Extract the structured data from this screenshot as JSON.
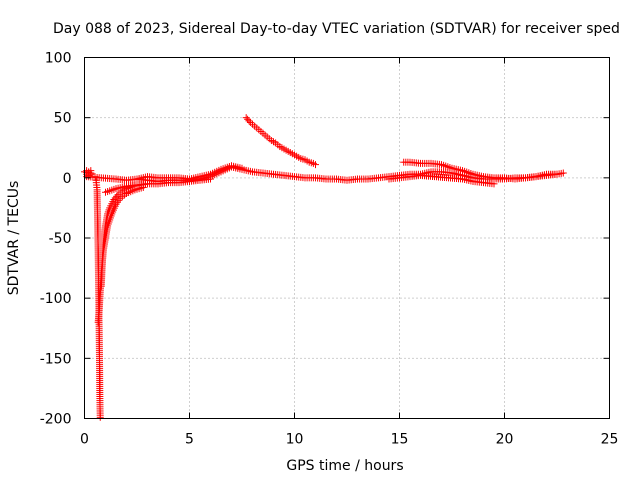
{
  "chart_data": {
    "type": "scatter",
    "title": "Day 088 of 2023, Sidereal Day-to-day VTEC variation (SDTVAR) for receiver sped",
    "xlabel": "GPS time / hours",
    "ylabel": "SDTVAR / TECUs",
    "xlim": [
      0,
      25
    ],
    "ylim": [
      -200,
      100
    ],
    "xticks": [
      0,
      5,
      10,
      15,
      20,
      25
    ],
    "yticks": [
      -200,
      -150,
      -100,
      -50,
      0,
      50,
      100
    ],
    "xtick_labels": [
      "0",
      "5",
      "10",
      "15",
      "20",
      "25"
    ],
    "ytick_labels": [
      "-200",
      "-150",
      "-100",
      "-50",
      "0",
      "50",
      "100"
    ],
    "grid": true,
    "marker": "+",
    "marker_color": "#ff0000",
    "series": [
      {
        "name": "early-dip-arc",
        "points": [
          [
            0.5,
            1
          ],
          [
            0.55,
            -2
          ],
          [
            0.6,
            -10
          ],
          [
            0.62,
            -30
          ],
          [
            0.65,
            -60
          ],
          [
            0.68,
            -100
          ],
          [
            0.7,
            -130
          ],
          [
            0.72,
            -160
          ],
          [
            0.73,
            -180
          ],
          [
            0.74,
            -192
          ],
          [
            0.75,
            -199
          ],
          [
            0.8,
            -90
          ],
          [
            0.85,
            -70
          ],
          [
            0.9,
            -55
          ],
          [
            1.0,
            -40
          ],
          [
            1.1,
            -30
          ],
          [
            1.2,
            -25
          ],
          [
            1.4,
            -18
          ],
          [
            1.6,
            -14
          ],
          [
            1.8,
            -11
          ],
          [
            2.0,
            -9
          ],
          [
            2.3,
            -7
          ],
          [
            2.6,
            -6
          ],
          [
            3.0,
            -5
          ],
          [
            0.65,
            -120
          ],
          [
            0.7,
            -110
          ],
          [
            0.75,
            -95
          ],
          [
            0.8,
            -80
          ],
          [
            0.9,
            -60
          ],
          [
            1.0,
            -50
          ],
          [
            1.1,
            -40
          ],
          [
            1.3,
            -30
          ],
          [
            1.5,
            -22
          ],
          [
            1.7,
            -17
          ],
          [
            2.0,
            -13
          ],
          [
            2.4,
            -10
          ],
          [
            2.8,
            -8
          ]
        ]
      },
      {
        "name": "baseline",
        "points": [
          [
            0.0,
            5
          ],
          [
            0.2,
            4
          ],
          [
            0.3,
            3
          ],
          [
            0.1,
            1
          ],
          [
            1.5,
            -1
          ],
          [
            2.0,
            -2
          ],
          [
            2.5,
            -1
          ],
          [
            3.0,
            -2
          ],
          [
            3.5,
            -3
          ],
          [
            4.0,
            -2
          ],
          [
            4.5,
            -2
          ],
          [
            5.0,
            -2
          ],
          [
            5.5,
            -1
          ],
          [
            6.0,
            1
          ],
          [
            6.5,
            5
          ],
          [
            7.0,
            9
          ],
          [
            7.5,
            7
          ],
          [
            8.0,
            5
          ],
          [
            8.5,
            4
          ],
          [
            9.0,
            3
          ],
          [
            9.5,
            2
          ],
          [
            10.0,
            1
          ],
          [
            10.5,
            0
          ],
          [
            11.0,
            0
          ],
          [
            11.5,
            -1
          ],
          [
            12.0,
            -1
          ],
          [
            12.5,
            -2
          ],
          [
            13.0,
            -1
          ],
          [
            13.5,
            -1
          ],
          [
            14.0,
            0
          ],
          [
            14.5,
            1
          ],
          [
            15.0,
            2
          ],
          [
            15.5,
            3
          ],
          [
            16.0,
            3
          ],
          [
            16.5,
            5
          ],
          [
            17.0,
            5
          ],
          [
            17.5,
            4
          ],
          [
            18.0,
            2
          ],
          [
            18.5,
            0
          ],
          [
            19.0,
            -1
          ],
          [
            19.5,
            -1
          ],
          [
            20.0,
            -1
          ],
          [
            20.5,
            0
          ],
          [
            21.0,
            0
          ],
          [
            21.5,
            1
          ],
          [
            22.0,
            2
          ],
          [
            22.5,
            3
          ],
          [
            22.8,
            4
          ]
        ]
      },
      {
        "name": "upper-band",
        "points": [
          [
            2.5,
            -1
          ],
          [
            3.0,
            1
          ],
          [
            3.5,
            0
          ],
          [
            4.0,
            0
          ],
          [
            4.5,
            0
          ],
          [
            5.0,
            -1
          ],
          [
            6.0,
            3
          ],
          [
            6.5,
            7
          ],
          [
            7.0,
            10
          ],
          [
            7.5,
            8
          ],
          [
            15.2,
            13
          ],
          [
            15.5,
            13
          ],
          [
            16.0,
            12
          ],
          [
            16.5,
            12
          ],
          [
            17.0,
            11
          ],
          [
            17.5,
            8
          ],
          [
            18.0,
            6
          ],
          [
            18.5,
            3
          ],
          [
            19.0,
            1
          ],
          [
            19.5,
            0
          ],
          [
            20.0,
            0
          ],
          [
            20.5,
            -1
          ],
          [
            21.5,
            1
          ],
          [
            22.0,
            3
          ],
          [
            22.5,
            3
          ]
        ]
      },
      {
        "name": "lower-band",
        "points": [
          [
            1.0,
            -12
          ],
          [
            1.5,
            -9
          ],
          [
            2.0,
            -7
          ],
          [
            2.5,
            -6
          ],
          [
            3.0,
            -5
          ],
          [
            3.5,
            -5
          ],
          [
            4.0,
            -4
          ],
          [
            4.5,
            -4
          ],
          [
            5.0,
            -3
          ],
          [
            5.5,
            -2
          ],
          [
            6.0,
            -1
          ],
          [
            14.5,
            -1
          ],
          [
            15.0,
            0
          ],
          [
            15.5,
            1
          ],
          [
            16.0,
            2
          ],
          [
            18.0,
            -1
          ],
          [
            18.5,
            -3
          ],
          [
            19.0,
            -4
          ],
          [
            19.5,
            -5
          ]
        ]
      },
      {
        "name": "decay-arc",
        "points": [
          [
            7.7,
            50
          ],
          [
            7.9,
            46
          ],
          [
            8.1,
            43
          ],
          [
            8.3,
            40
          ],
          [
            8.5,
            37
          ],
          [
            8.7,
            34
          ],
          [
            8.9,
            31
          ],
          [
            9.1,
            29
          ],
          [
            9.3,
            26
          ],
          [
            9.5,
            24
          ],
          [
            9.7,
            22
          ],
          [
            9.9,
            20
          ],
          [
            10.1,
            18
          ],
          [
            10.3,
            16
          ],
          [
            10.5,
            15
          ],
          [
            10.7,
            13
          ],
          [
            10.9,
            12
          ],
          [
            11.0,
            11
          ]
        ]
      },
      {
        "name": "start-cluster",
        "points": [
          [
            0.1,
            6
          ],
          [
            0.2,
            5
          ],
          [
            0.3,
            6
          ],
          [
            0.1,
            3
          ],
          [
            0.2,
            2
          ],
          [
            0.3,
            4
          ]
        ]
      }
    ]
  }
}
